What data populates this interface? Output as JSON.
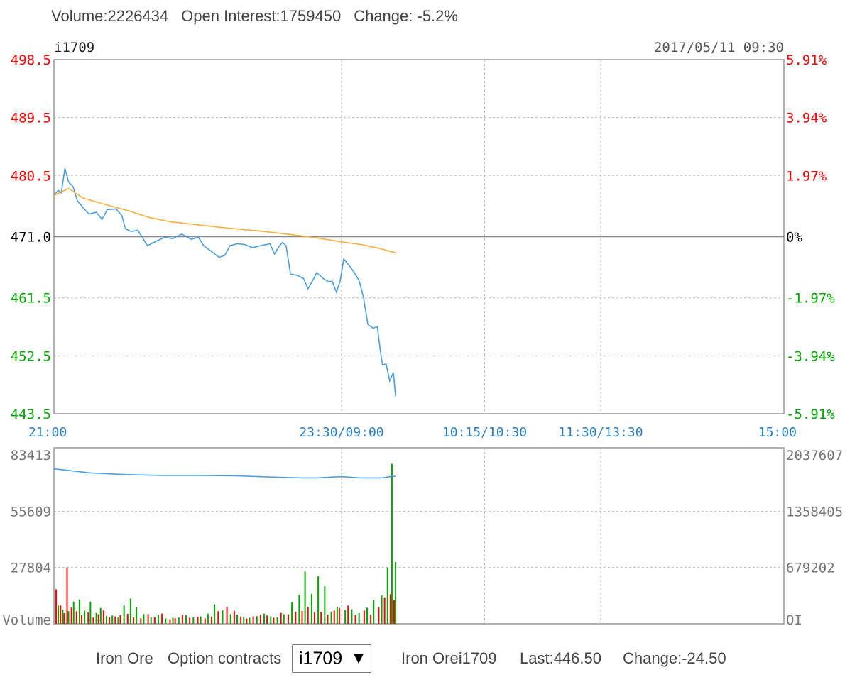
{
  "header": {
    "volume": "Volume:2226434",
    "open_interest": "Open Interest:1759450",
    "change": "Change: -5.2%"
  },
  "chart_info": {
    "symbol": "i1709",
    "datetime": "2017/05/11 09:30"
  },
  "footer": {
    "commodity": "Iron Ore",
    "option_label": "Option contracts",
    "selected_contract": "i1709",
    "quote_name": "Iron Orei1709",
    "last": "Last:446.50",
    "change": "Change:-24.50"
  },
  "colors": {
    "up": "#ff0000",
    "down": "#00a800",
    "neutral": "#000000",
    "price_line": "#4a9ee0",
    "avg_line": "#f5b041",
    "oi_line": "#4a9ee0",
    "time_label": "#2a80c8",
    "axis_gray": "#777777"
  },
  "chart_data": [
    {
      "type": "line",
      "panel": "price",
      "y_ticks_left": [
        {
          "label": "498.5",
          "value": 498.5,
          "color": "up"
        },
        {
          "label": "489.5",
          "value": 489.5,
          "color": "up"
        },
        {
          "label": "480.5",
          "value": 480.5,
          "color": "up"
        },
        {
          "label": "471.0",
          "value": 471.0,
          "color": "neutral"
        },
        {
          "label": "461.5",
          "value": 461.5,
          "color": "down"
        },
        {
          "label": "452.5",
          "value": 452.5,
          "color": "down"
        },
        {
          "label": "443.5",
          "value": 443.5,
          "color": "down"
        }
      ],
      "y_ticks_right": [
        {
          "label": "5.91%",
          "value": 498.5,
          "color": "up"
        },
        {
          "label": "3.94%",
          "value": 489.5,
          "color": "up"
        },
        {
          "label": "1.97%",
          "value": 480.5,
          "color": "up"
        },
        {
          "label": "0%",
          "value": 471.0,
          "color": "neutral"
        },
        {
          "label": "-1.97%",
          "value": 461.5,
          "color": "down"
        },
        {
          "label": "-3.94%",
          "value": 452.5,
          "color": "down"
        },
        {
          "label": "-5.91%",
          "value": 443.5,
          "color": "down"
        }
      ],
      "ylim": [
        443.5,
        498.5
      ],
      "x_session_fraction": [
        0,
        1
      ],
      "x_tick_labels": [
        {
          "label": "21:00",
          "fraction": 0.0
        },
        {
          "label": "23:30/09:00",
          "fraction": 0.394
        },
        {
          "label": "10:15/10:30",
          "fraction": 0.59
        },
        {
          "label": "11:30/13:30",
          "fraction": 0.749
        },
        {
          "label": "15:00",
          "fraction": 1.0
        }
      ],
      "series": [
        {
          "key": "price",
          "points": [
            [
              0.0,
              477.5
            ],
            [
              0.006,
              478.2
            ],
            [
              0.01,
              477.8
            ],
            [
              0.015,
              481.6
            ],
            [
              0.02,
              479.5
            ],
            [
              0.026,
              478.8
            ],
            [
              0.032,
              476.6
            ],
            [
              0.04,
              475.5
            ],
            [
              0.048,
              474.5
            ],
            [
              0.058,
              474.8
            ],
            [
              0.066,
              473.7
            ],
            [
              0.073,
              475.2
            ],
            [
              0.085,
              475.3
            ],
            [
              0.093,
              474.3
            ],
            [
              0.098,
              472.2
            ],
            [
              0.106,
              471.8
            ],
            [
              0.115,
              472.0
            ],
            [
              0.128,
              469.6
            ],
            [
              0.14,
              470.3
            ],
            [
              0.152,
              470.9
            ],
            [
              0.163,
              470.7
            ],
            [
              0.175,
              471.4
            ],
            [
              0.188,
              470.6
            ],
            [
              0.198,
              470.9
            ],
            [
              0.205,
              469.6
            ],
            [
              0.216,
              468.7
            ],
            [
              0.226,
              467.8
            ],
            [
              0.234,
              468.1
            ],
            [
              0.241,
              469.6
            ],
            [
              0.251,
              469.9
            ],
            [
              0.261,
              469.8
            ],
            [
              0.272,
              469.3
            ],
            [
              0.283,
              469.6
            ],
            [
              0.296,
              469.9
            ],
            [
              0.302,
              468.3
            ],
            [
              0.309,
              469.6
            ],
            [
              0.313,
              470.1
            ],
            [
              0.318,
              469.6
            ],
            [
              0.324,
              465.2
            ],
            [
              0.333,
              465.0
            ],
            [
              0.342,
              464.5
            ],
            [
              0.348,
              462.9
            ],
            [
              0.355,
              464.3
            ],
            [
              0.36,
              465.4
            ],
            [
              0.369,
              464.5
            ],
            [
              0.376,
              464.0
            ],
            [
              0.381,
              464.1
            ],
            [
              0.387,
              462.4
            ],
            [
              0.392,
              464.1
            ],
            [
              0.397,
              467.5
            ],
            [
              0.404,
              466.6
            ],
            [
              0.411,
              465.5
            ],
            [
              0.418,
              464.2
            ],
            [
              0.424,
              461.6
            ],
            [
              0.43,
              457.4
            ],
            [
              0.437,
              456.8
            ],
            [
              0.443,
              457.0
            ],
            [
              0.447,
              453.4
            ],
            [
              0.45,
              451.1
            ],
            [
              0.455,
              451.2
            ],
            [
              0.46,
              448.6
            ],
            [
              0.465,
              449.9
            ],
            [
              0.468,
              446.2
            ]
          ]
        },
        {
          "key": "average",
          "points": [
            [
              0.0,
              477.4
            ],
            [
              0.02,
              478.5
            ],
            [
              0.04,
              477.0
            ],
            [
              0.07,
              476.0
            ],
            [
              0.1,
              475.1
            ],
            [
              0.13,
              474.0
            ],
            [
              0.16,
              473.3
            ],
            [
              0.2,
              472.8
            ],
            [
              0.24,
              472.3
            ],
            [
              0.28,
              471.9
            ],
            [
              0.32,
              471.4
            ],
            [
              0.36,
              470.8
            ],
            [
              0.394,
              470.2
            ],
            [
              0.42,
              469.8
            ],
            [
              0.445,
              469.2
            ],
            [
              0.468,
              468.5
            ]
          ]
        }
      ]
    },
    {
      "type": "bar",
      "panel": "volume",
      "y_ticks_left": [
        {
          "label": "83413",
          "value": 83413
        },
        {
          "label": "55609",
          "value": 55609
        },
        {
          "label": "27804",
          "value": 27804
        },
        {
          "label": "Volume",
          "value": 0
        }
      ],
      "y_ticks_right": [
        {
          "label": "2037607",
          "value": 2037607
        },
        {
          "label": "1358405",
          "value": 1358405
        },
        {
          "label": "679202",
          "value": 679202
        },
        {
          "label": "OI",
          "value": 0
        }
      ],
      "ylim": [
        0,
        83413
      ],
      "oi_ylim": [
        0,
        2037607
      ],
      "bars_up": [
        [
          0.002,
          17000
        ],
        [
          0.008,
          9000
        ],
        [
          0.013,
          5200
        ],
        [
          0.017,
          27800
        ],
        [
          0.023,
          8000
        ],
        [
          0.03,
          6200
        ],
        [
          0.037,
          4200
        ],
        [
          0.046,
          5600
        ],
        [
          0.053,
          3100
        ],
        [
          0.06,
          4700
        ],
        [
          0.067,
          6600
        ],
        [
          0.075,
          3300
        ],
        [
          0.083,
          3600
        ],
        [
          0.09,
          4200
        ],
        [
          0.1,
          4900
        ],
        [
          0.108,
          3100
        ],
        [
          0.118,
          2700
        ],
        [
          0.128,
          4700
        ],
        [
          0.137,
          3200
        ],
        [
          0.147,
          5000
        ],
        [
          0.158,
          2200
        ],
        [
          0.165,
          2700
        ],
        [
          0.175,
          4500
        ],
        [
          0.185,
          3000
        ],
        [
          0.196,
          3500
        ],
        [
          0.206,
          2700
        ],
        [
          0.215,
          3600
        ],
        [
          0.224,
          6200
        ],
        [
          0.236,
          8300
        ],
        [
          0.246,
          6400
        ],
        [
          0.255,
          3600
        ],
        [
          0.263,
          2600
        ],
        [
          0.272,
          3700
        ],
        [
          0.282,
          4500
        ],
        [
          0.291,
          4100
        ],
        [
          0.3,
          3000
        ],
        [
          0.31,
          5400
        ],
        [
          0.32,
          4700
        ],
        [
          0.33,
          5900
        ],
        [
          0.339,
          6300
        ],
        [
          0.347,
          8400
        ],
        [
          0.356,
          5600
        ],
        [
          0.365,
          5800
        ],
        [
          0.374,
          4500
        ],
        [
          0.383,
          6500
        ],
        [
          0.39,
          7800
        ],
        [
          0.402,
          9000
        ],
        [
          0.412,
          4200
        ],
        [
          0.424,
          6600
        ],
        [
          0.433,
          4500
        ],
        [
          0.444,
          8000
        ],
        [
          0.452,
          13000
        ],
        [
          0.46,
          14600
        ],
        [
          0.465,
          11600
        ]
      ],
      "bars_down": [
        [
          0.005,
          9000
        ],
        [
          0.011,
          7000
        ],
        [
          0.019,
          6300
        ],
        [
          0.026,
          11000
        ],
        [
          0.034,
          12000
        ],
        [
          0.041,
          6500
        ],
        [
          0.049,
          11000
        ],
        [
          0.057,
          5400
        ],
        [
          0.063,
          7800
        ],
        [
          0.071,
          3900
        ],
        [
          0.079,
          4100
        ],
        [
          0.087,
          3100
        ],
        [
          0.095,
          9000
        ],
        [
          0.104,
          12500
        ],
        [
          0.112,
          8100
        ],
        [
          0.122,
          4800
        ],
        [
          0.132,
          3300
        ],
        [
          0.142,
          4200
        ],
        [
          0.152,
          2700
        ],
        [
          0.162,
          3000
        ],
        [
          0.17,
          3100
        ],
        [
          0.18,
          4200
        ],
        [
          0.19,
          3200
        ],
        [
          0.2,
          3600
        ],
        [
          0.21,
          5000
        ],
        [
          0.219,
          9600
        ],
        [
          0.23,
          6700
        ],
        [
          0.241,
          4800
        ],
        [
          0.25,
          4500
        ],
        [
          0.259,
          3400
        ],
        [
          0.267,
          3000
        ],
        [
          0.277,
          3800
        ],
        [
          0.287,
          5000
        ],
        [
          0.296,
          3700
        ],
        [
          0.305,
          3200
        ],
        [
          0.314,
          4700
        ],
        [
          0.325,
          10800
        ],
        [
          0.335,
          14300
        ],
        [
          0.343,
          25800
        ],
        [
          0.352,
          14800
        ],
        [
          0.361,
          23600
        ],
        [
          0.37,
          18500
        ],
        [
          0.379,
          6000
        ],
        [
          0.387,
          8200
        ],
        [
          0.398,
          6800
        ],
        [
          0.407,
          7100
        ],
        [
          0.417,
          5300
        ],
        [
          0.428,
          7900
        ],
        [
          0.437,
          11600
        ],
        [
          0.448,
          14000
        ],
        [
          0.456,
          27800
        ],
        [
          0.462,
          79000
        ],
        [
          0.467,
          30500
        ]
      ],
      "oi_points": [
        [
          0.0,
          1870000
        ],
        [
          0.02,
          1850000
        ],
        [
          0.05,
          1820000
        ],
        [
          0.1,
          1800000
        ],
        [
          0.15,
          1790000
        ],
        [
          0.2,
          1790000
        ],
        [
          0.25,
          1785000
        ],
        [
          0.3,
          1770000
        ],
        [
          0.34,
          1760000
        ],
        [
          0.36,
          1760000
        ],
        [
          0.38,
          1770000
        ],
        [
          0.394,
          1775000
        ],
        [
          0.42,
          1760000
        ],
        [
          0.45,
          1760000
        ],
        [
          0.46,
          1775000
        ],
        [
          0.468,
          1780000
        ]
      ]
    }
  ]
}
